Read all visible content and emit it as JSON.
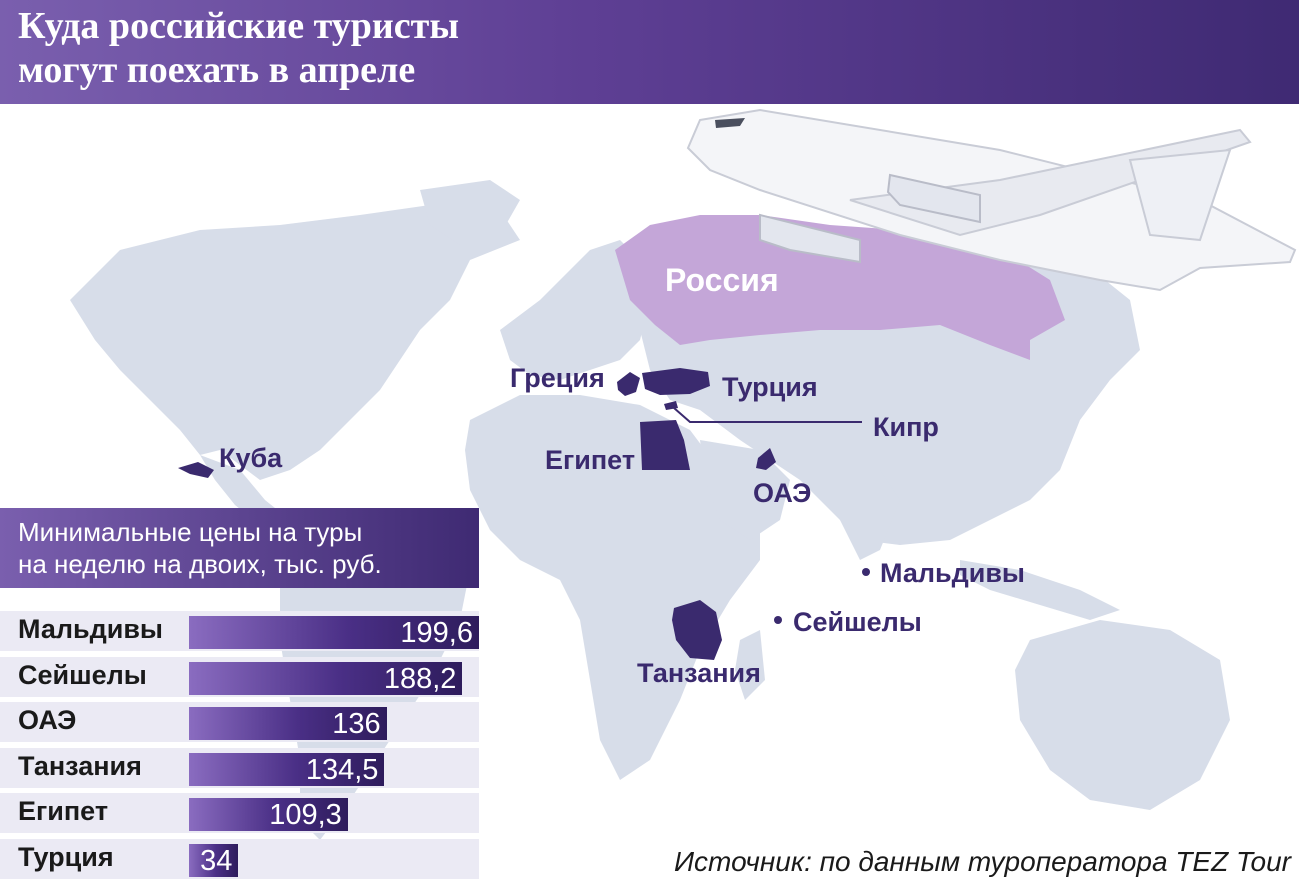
{
  "title_line1": "Куда российские туристы",
  "title_line2": "могут поехать в апреле",
  "map_labels": {
    "russia": "Россия",
    "greece": "Греция",
    "turkey": "Турция",
    "cyprus": "Кипр",
    "egypt": "Египет",
    "uae": "ОАЭ",
    "cuba": "Куба",
    "maldives": "Мальдивы",
    "seychelles": "Сейшелы",
    "tanzania": "Танзания"
  },
  "colors": {
    "header": "#5e3f94",
    "russia": "#c4a6d8",
    "destinations": "#3a2a6e",
    "land": "#d7dde9",
    "bar": "#4a2f86"
  },
  "chart_data": {
    "type": "bar",
    "orientation": "horizontal",
    "title_line1": "Минимальные цены на туры",
    "title_line2": "на неделю на двоих, тыс. руб.",
    "categories": [
      "Мальдивы",
      "Сейшелы",
      "ОАЭ",
      "Танзания",
      "Египет",
      "Турция"
    ],
    "values": [
      199.6,
      188.2,
      136,
      134.5,
      109.3,
      34
    ],
    "value_labels": [
      "199,6",
      "188,2",
      "136",
      "134,5",
      "109,3",
      "34"
    ],
    "xlim": [
      0,
      199.6
    ]
  },
  "source": "Источник: по данным туроператора TEZ Tour"
}
